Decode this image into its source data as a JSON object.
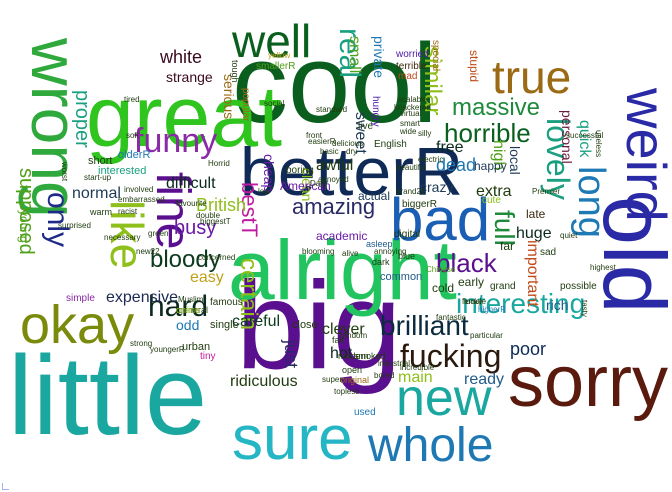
{
  "words": [
    {
      "text": "little",
      "color": "#1aa7a0"
    },
    {
      "text": "big",
      "color": "#5a0f8f"
    },
    {
      "text": "cool",
      "color": "#0b5f1e"
    },
    {
      "text": "great",
      "color": "#2fc41e"
    },
    {
      "text": "alright",
      "color": "#21c45e"
    },
    {
      "text": "betterR",
      "color": "#0f2a56"
    },
    {
      "text": "sorry",
      "color": "#5a1a0e"
    },
    {
      "text": "sure",
      "color": "#24b6c4"
    },
    {
      "text": "wrong",
      "color": "#2fa83c"
    },
    {
      "text": "weird",
      "color": "#2a2aa6"
    },
    {
      "text": "old",
      "color": "#2a2aa6"
    },
    {
      "text": "bad",
      "color": "#1a5fb4"
    },
    {
      "text": "new",
      "color": "#1aa7a0"
    },
    {
      "text": "whole",
      "color": "#1e78b4"
    },
    {
      "text": "okay",
      "color": "#7a8a0a"
    },
    {
      "text": "fine",
      "color": "#5a0f8f"
    },
    {
      "text": "like",
      "color": "#8fbf1a"
    },
    {
      "text": "well",
      "color": "#0b5f1e"
    },
    {
      "text": "true",
      "color": "#9a6a14"
    },
    {
      "text": "long",
      "color": "#1e7ab4"
    },
    {
      "text": "lovely",
      "color": "#1aa080"
    },
    {
      "text": "funny",
      "color": "#8a2aa6"
    },
    {
      "text": "real",
      "color": "#1aa080"
    },
    {
      "text": "massive",
      "color": "#1e8a3c"
    },
    {
      "text": "horrible",
      "color": "#0b5f1e"
    },
    {
      "text": "brilliant",
      "color": "#0b2a3e"
    },
    {
      "text": "interesting",
      "color": "#1aa7a0"
    },
    {
      "text": "fucking",
      "color": "#2a1a0e"
    },
    {
      "text": "hard",
      "color": "#0b2a1e"
    },
    {
      "text": "only",
      "color": "#1e2a88"
    },
    {
      "text": "black",
      "color": "#5a0f8f"
    },
    {
      "text": "full",
      "color": "#1e8a3c"
    },
    {
      "text": "amazing",
      "color": "#2a2a66"
    },
    {
      "text": "bloody",
      "color": "#0b3a1e"
    },
    {
      "text": "certain",
      "color": "#8fbf1a"
    },
    {
      "text": "expensive",
      "color": "#1e2a56"
    },
    {
      "text": "similar",
      "color": "#8fbf1a"
    },
    {
      "text": "supposed",
      "color": "#4fa01a"
    },
    {
      "text": "proper",
      "color": "#1aa080"
    },
    {
      "text": "white",
      "color": "#3a0a1e"
    },
    {
      "text": "bestT",
      "color": "#c01aa0"
    },
    {
      "text": "dead",
      "color": "#1e78b4"
    },
    {
      "text": "main",
      "color": "#8fbf1a"
    },
    {
      "text": "ready",
      "color": "#1e5a8a"
    },
    {
      "text": "poor",
      "color": "#0b2a56"
    },
    {
      "text": "just",
      "color": "#2a2a66"
    },
    {
      "text": "busy",
      "color": "#6a1aa6"
    },
    {
      "text": "easy",
      "color": "#c0a01a"
    },
    {
      "text": "British",
      "color": "#8fbf1a"
    },
    {
      "text": "normal",
      "color": "#1e3a56"
    },
    {
      "text": "difficult",
      "color": "#0b2a1e"
    },
    {
      "text": "ridiculous",
      "color": "#1e3a0e"
    },
    {
      "text": "careful",
      "color": "#0b3a1e"
    },
    {
      "text": "clever",
      "color": "#1e3a0e"
    },
    {
      "text": "hot",
      "color": "#0b2a1e"
    },
    {
      "text": "free",
      "color": "#0b2a1e"
    },
    {
      "text": "huge",
      "color": "#0b2a1e"
    },
    {
      "text": "extra",
      "color": "#1e3a0e"
    },
    {
      "text": "crazy",
      "color": "#1e3a56"
    },
    {
      "text": "small",
      "color": "#4fa01a"
    },
    {
      "text": "sweet",
      "color": "#1e3a56"
    },
    {
      "text": "clean",
      "color": "#8fbf1a"
    },
    {
      "text": "awful",
      "color": "#1e3a0e"
    },
    {
      "text": "quick",
      "color": "#1aa080"
    },
    {
      "text": "personal",
      "color": "#6a1a3e"
    },
    {
      "text": "important",
      "color": "#c04a1a"
    },
    {
      "text": "rich",
      "color": "#1e5a8a"
    },
    {
      "text": "high",
      "color": "#4fa01a"
    },
    {
      "text": "local",
      "color": "#1e3a56"
    },
    {
      "text": "private",
      "color": "#1e78b4"
    },
    {
      "text": "serious",
      "color": "#9a6a14"
    },
    {
      "text": "strange",
      "color": "#3a0a1e"
    },
    {
      "text": "odd",
      "color": "#1e78b4"
    },
    {
      "text": "cheap",
      "color": "#6a1aa6"
    },
    {
      "text": "American",
      "color": "#6a1aa6"
    },
    {
      "text": "actual",
      "color": "#1e3a56"
    },
    {
      "text": "academic",
      "color": "#6a1aa6"
    },
    {
      "text": "happy",
      "color": "#1e3a56"
    },
    {
      "text": "early",
      "color": "#1e3a0e"
    },
    {
      "text": "far",
      "color": "#1e3a0e"
    },
    {
      "text": "late",
      "color": "#3a2a0e"
    },
    {
      "text": "stupid",
      "color": "#c04a1a"
    },
    {
      "text": "cold",
      "color": "#1e3a0e"
    },
    {
      "text": "simple",
      "color": "#8a2aa6"
    },
    {
      "text": "urban",
      "color": "#1e3a0e"
    },
    {
      "text": "single",
      "color": "#1e3a0e"
    },
    {
      "text": "close",
      "color": "#1e3a0e"
    },
    {
      "text": "common",
      "color": "#1e5a8a"
    },
    {
      "text": "short",
      "color": "#1e3a0e"
    },
    {
      "text": "interested",
      "color": "#1aa080"
    },
    {
      "text": "olderR",
      "color": "#1e78b4"
    },
    {
      "text": "biggerR",
      "color": "#1e3a0e"
    },
    {
      "text": "tiny",
      "color": "#c01aa0"
    },
    {
      "text": "used",
      "color": "#1e78b4"
    },
    {
      "text": "live",
      "color": "#1e3a0e"
    },
    {
      "text": "boring",
      "color": "#1e3a0e"
    },
    {
      "text": "cute",
      "color": "#8fbf1a"
    },
    {
      "text": "sad",
      "color": "#1e3a0e"
    },
    {
      "text": "possible",
      "color": "#1e3a0e"
    },
    {
      "text": "grand",
      "color": "#1e3a0e"
    },
    {
      "text": "smallerR",
      "color": "#4fa01a"
    },
    {
      "text": "popular",
      "color": "#9a6a14"
    },
    {
      "text": "worried",
      "color": "#4a1aa6"
    },
    {
      "text": "mad",
      "color": "#c04a1a"
    },
    {
      "text": "terrible",
      "color": "#3a2a0e"
    },
    {
      "text": "special",
      "color": "#9a6a14"
    },
    {
      "text": "hungry",
      "color": "#4a1aa6"
    },
    {
      "text": "famous",
      "color": "#1e3a0e"
    },
    {
      "text": "digital",
      "color": "#1e3a0e"
    },
    {
      "text": "English",
      "color": "#1e3a0e"
    },
    {
      "text": "blue",
      "color": "#1e3a0e"
    },
    {
      "text": "fair",
      "color": "#1e3a0e"
    },
    {
      "text": "general",
      "color": "#1e3a0e"
    },
    {
      "text": "online",
      "color": "#8fbf1a"
    },
    {
      "text": "modern",
      "color": "#1e3a0e"
    },
    {
      "text": "smoked",
      "color": "#1e3a0e"
    },
    {
      "text": "open",
      "color": "#1e3a0e"
    },
    {
      "text": "original",
      "color": "#9a6a14"
    },
    {
      "text": "asleep",
      "color": "#1e5a8a"
    },
    {
      "text": "dark",
      "color": "#1e3a0e"
    },
    {
      "text": "tough",
      "color": "#1e3a0e"
    },
    {
      "text": "warm",
      "color": "#1e3a0e"
    },
    {
      "text": "young",
      "color": "#4fa01a"
    },
    {
      "text": "highest",
      "color": "#1e3a0e"
    },
    {
      "text": "blooming",
      "color": "#1e3a0e"
    },
    {
      "text": "involved",
      "color": "#1e3a0e"
    },
    {
      "text": "embarrassed",
      "color": "#1e3a0e"
    },
    {
      "text": "biggestT",
      "color": "#1e3a0e"
    },
    {
      "text": "concerned",
      "color": "#1e3a0e"
    },
    {
      "text": "Horrid",
      "color": "#1e3a0e"
    },
    {
      "text": "green",
      "color": "#1e3a0e"
    },
    {
      "text": "new22",
      "color": "#1e3a0e"
    },
    {
      "text": "random",
      "color": "#1e3a0e"
    },
    {
      "text": "brand21",
      "color": "#1e3a0e"
    },
    {
      "text": "alive",
      "color": "#1e3a0e"
    },
    {
      "text": "annoying",
      "color": "#1e3a0e"
    },
    {
      "text": "delicious",
      "color": "#1e3a0e"
    },
    {
      "text": "lucky",
      "color": "#1e3a0e"
    },
    {
      "text": "higherR",
      "color": "#1e78b4"
    },
    {
      "text": "industrial",
      "color": "#1e3a0e"
    },
    {
      "text": "Chinese",
      "color": "#4fa01a"
    },
    {
      "text": "tired",
      "color": "#1e3a0e"
    },
    {
      "text": "soft",
      "color": "#1e3a0e"
    },
    {
      "text": "easierR",
      "color": "#1e3a0e"
    },
    {
      "text": "front",
      "color": "#1e3a0e"
    },
    {
      "text": "basic",
      "color": "#1e3a0e"
    },
    {
      "text": "dry",
      "color": "#1e3a0e"
    },
    {
      "text": "super",
      "color": "#1e3a0e"
    },
    {
      "text": "Premier",
      "color": "#1e3a0e"
    },
    {
      "text": "useless",
      "color": "#1e3a0e"
    },
    {
      "text": "tasty",
      "color": "#1e3a0e"
    },
    {
      "text": "yellow",
      "color": "#c0a01a"
    },
    {
      "text": "favourite",
      "color": "#1e3a0e"
    },
    {
      "text": "Muslim",
      "color": "#1e3a0e"
    },
    {
      "text": "successful",
      "color": "#1e3a0e"
    },
    {
      "text": "quiet",
      "color": "#1e3a0e"
    },
    {
      "text": "strong",
      "color": "#1e3a0e"
    },
    {
      "text": "youngerR",
      "color": "#1e3a0e"
    },
    {
      "text": "social",
      "color": "#1e3a0e"
    },
    {
      "text": "standard",
      "color": "#1e3a0e"
    },
    {
      "text": "scalable",
      "color": "#1e3a0e"
    },
    {
      "text": "virtual",
      "color": "#1e3a0e"
    },
    {
      "text": "smart",
      "color": "#1e3a0e"
    },
    {
      "text": "female",
      "color": "#1e3a0e"
    },
    {
      "text": "particular",
      "color": "#1e3a0e"
    },
    {
      "text": "incredible",
      "color": "#1e3a0e"
    },
    {
      "text": "worst",
      "color": "#1e3a0e"
    },
    {
      "text": "necessary",
      "color": "#1e3a0e"
    },
    {
      "text": "surprised",
      "color": "#1e3a0e"
    },
    {
      "text": "racist",
      "color": "#1e3a0e"
    },
    {
      "text": "start-up",
      "color": "#1e3a0e"
    },
    {
      "text": "Daily",
      "color": "#1e3a0e"
    },
    {
      "text": "annoyed",
      "color": "#1e3a0e"
    },
    {
      "text": "fantastic",
      "color": "#1e3a0e"
    },
    {
      "text": "topless",
      "color": "#1e3a0e"
    },
    {
      "text": "electric",
      "color": "#1e3a0e"
    },
    {
      "text": "beautiful",
      "color": "#1e3a0e"
    },
    {
      "text": "wide",
      "color": "#1e3a0e"
    },
    {
      "text": "silly",
      "color": "#1e3a0e"
    },
    {
      "text": "double",
      "color": "#1e3a0e"
    },
    {
      "text": "bored",
      "color": "#1e3a0e"
    },
    {
      "text": "knackered",
      "color": "#1e3a0e"
    },
    {
      "text": "low",
      "color": "#1e3a0e"
    }
  ]
}
